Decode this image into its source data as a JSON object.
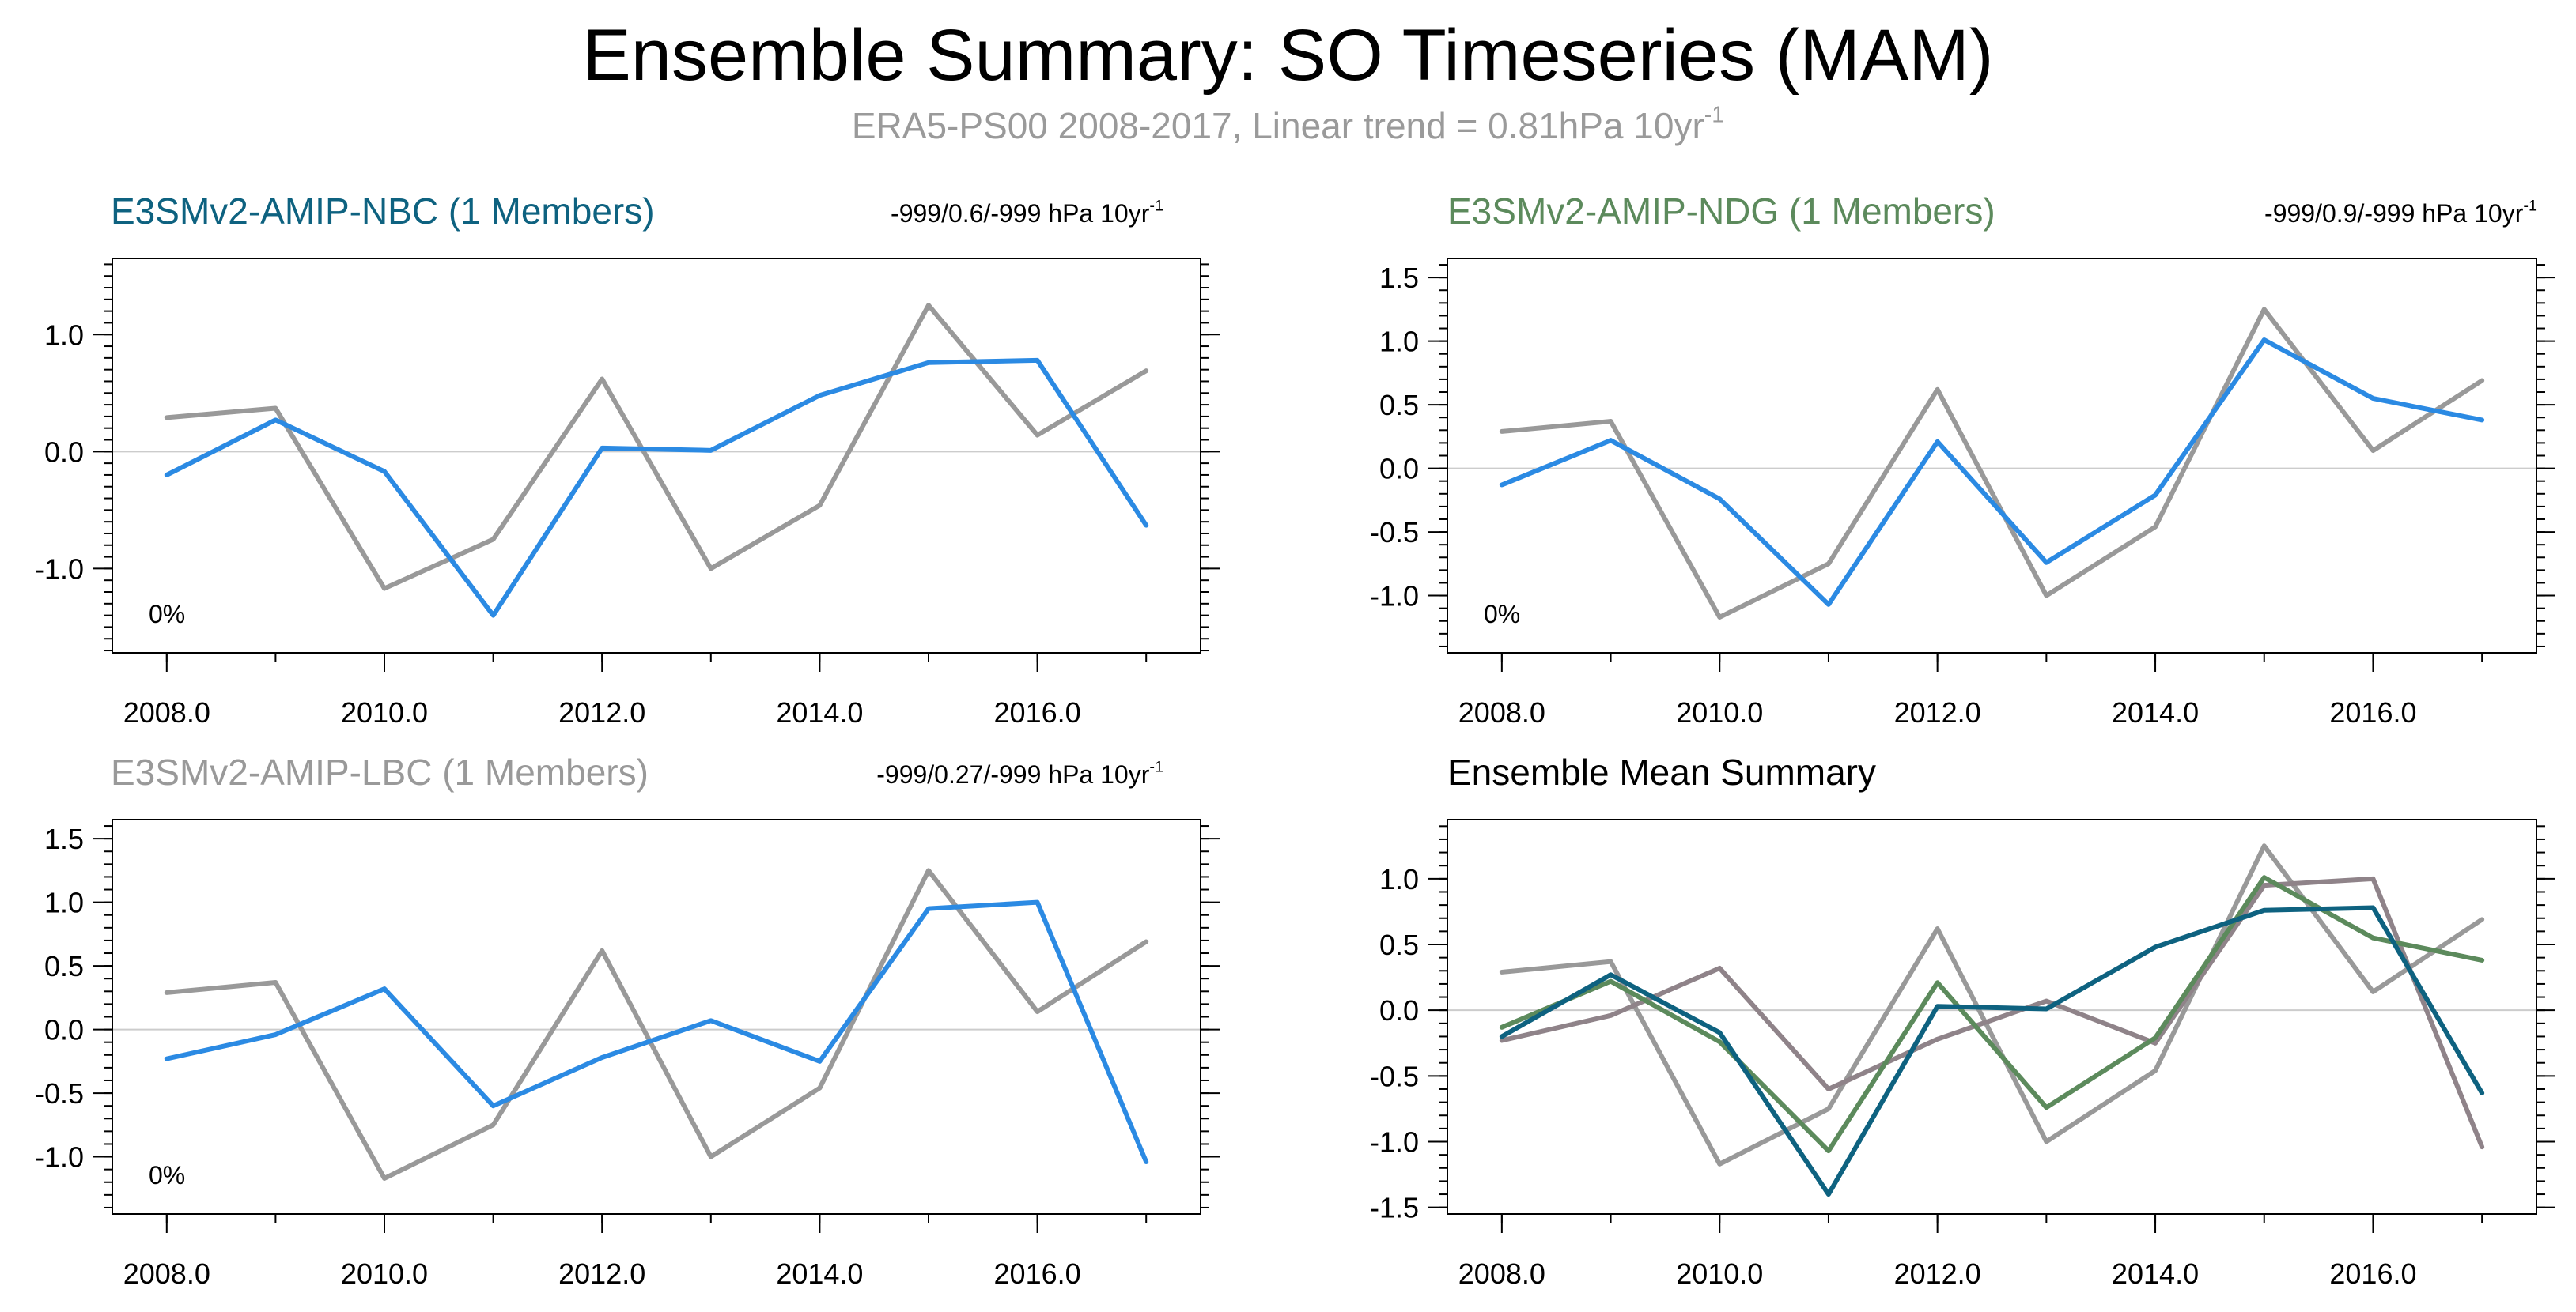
{
  "title": "Ensemble Summary: SO Timeseries (MAM)",
  "subtitle": {
    "text": "ERA5-PS00 2008-2017, Linear trend = 0.81hPa 10yr",
    "superscript": "-1"
  },
  "colors": {
    "observation": "#999999",
    "nbc": "#0e6280",
    "ndg": "#5c8a5c",
    "lbc": "#999999",
    "model_line": "#2b8ae3",
    "lbc_mean": "#8f8389",
    "zero_line": "#cccccc",
    "axis": "#000000"
  },
  "panels": [
    {
      "title": "E3SMv2-AMIP-NBC (1 Members)",
      "title_color": "#0e6280",
      "trend_text": "-999/0.6/-999 hPa 10yr",
      "trend_superscript": "-1",
      "percent_label": "0%"
    },
    {
      "title": "E3SMv2-AMIP-NDG (1 Members)",
      "title_color": "#5c8a5c",
      "trend_text": "-999/0.9/-999 hPa 10yr",
      "trend_superscript": "-1",
      "percent_label": "0%"
    },
    {
      "title": "E3SMv2-AMIP-LBC (1 Members)",
      "title_color": "#999999",
      "trend_text": "-999/0.27/-999 hPa 10yr",
      "trend_superscript": "-1",
      "percent_label": "0%"
    },
    {
      "title": "Ensemble Mean Summary",
      "title_color": "#000000"
    }
  ],
  "chart_data": [
    {
      "type": "line",
      "title": "E3SMv2-AMIP-NBC (1 Members)",
      "x": [
        2008,
        2009,
        2010,
        2011,
        2012,
        2013,
        2014,
        2015,
        2016,
        2017
      ],
      "xlim": [
        2007.5,
        2017.5
      ],
      "ylim": [
        -1.72,
        1.65
      ],
      "xticks": [
        2008,
        2010,
        2012,
        2014,
        2016
      ],
      "xtick_labels": [
        "2008.0",
        "2010.0",
        "2012.0",
        "2014.0",
        "2016.0"
      ],
      "yticks": [
        -1.0,
        0.0,
        1.0
      ],
      "ytick_labels": [
        "-1.0",
        "0.0",
        "1.0"
      ],
      "series": [
        {
          "name": "ERA5-PS00",
          "color": "#999999",
          "values": [
            0.29,
            0.37,
            -1.17,
            -0.75,
            0.62,
            -1.0,
            -0.46,
            1.25,
            0.14,
            0.69
          ]
        },
        {
          "name": "E3SMv2-AMIP-NBC",
          "color": "#2b8ae3",
          "values": [
            -0.2,
            0.27,
            -0.17,
            -1.4,
            0.03,
            0.01,
            0.48,
            0.76,
            0.78,
            -0.63
          ]
        }
      ]
    },
    {
      "type": "line",
      "title": "E3SMv2-AMIP-NDG (1 Members)",
      "x": [
        2008,
        2009,
        2010,
        2011,
        2012,
        2013,
        2014,
        2015,
        2016,
        2017
      ],
      "xlim": [
        2007.5,
        2017.5
      ],
      "ylim": [
        -1.45,
        1.65
      ],
      "xticks": [
        2008,
        2010,
        2012,
        2014,
        2016
      ],
      "xtick_labels": [
        "2008.0",
        "2010.0",
        "2012.0",
        "2014.0",
        "2016.0"
      ],
      "yticks": [
        -1.0,
        -0.5,
        0.0,
        0.5,
        1.0,
        1.5
      ],
      "ytick_labels": [
        "-1.0",
        "-0.5",
        "0.0",
        "0.5",
        "1.0",
        "1.5"
      ],
      "series": [
        {
          "name": "ERA5-PS00",
          "color": "#999999",
          "values": [
            0.29,
            0.37,
            -1.17,
            -0.75,
            0.62,
            -1.0,
            -0.46,
            1.25,
            0.14,
            0.69
          ]
        },
        {
          "name": "E3SMv2-AMIP-NDG",
          "color": "#2b8ae3",
          "values": [
            -0.13,
            0.22,
            -0.24,
            -1.07,
            0.21,
            -0.74,
            -0.21,
            1.01,
            0.55,
            0.38
          ]
        }
      ]
    },
    {
      "type": "line",
      "title": "E3SMv2-AMIP-LBC (1 Members)",
      "x": [
        2008,
        2009,
        2010,
        2011,
        2012,
        2013,
        2014,
        2015,
        2016,
        2017
      ],
      "xlim": [
        2007.5,
        2017.5
      ],
      "ylim": [
        -1.45,
        1.65
      ],
      "xticks": [
        2008,
        2010,
        2012,
        2014,
        2016
      ],
      "xtick_labels": [
        "2008.0",
        "2010.0",
        "2012.0",
        "2014.0",
        "2016.0"
      ],
      "yticks": [
        -1.0,
        -0.5,
        0.0,
        0.5,
        1.0,
        1.5
      ],
      "ytick_labels": [
        "-1.0",
        "-0.5",
        "0.0",
        "0.5",
        "1.0",
        "1.5"
      ],
      "series": [
        {
          "name": "ERA5-PS00",
          "color": "#999999",
          "values": [
            0.29,
            0.37,
            -1.17,
            -0.75,
            0.62,
            -1.0,
            -0.46,
            1.25,
            0.14,
            0.69
          ]
        },
        {
          "name": "E3SMv2-AMIP-LBC",
          "color": "#2b8ae3",
          "values": [
            -0.23,
            -0.04,
            0.32,
            -0.6,
            -0.22,
            0.07,
            -0.25,
            0.95,
            1.0,
            -1.04
          ]
        }
      ]
    },
    {
      "type": "line",
      "title": "Ensemble Mean Summary",
      "x": [
        2008,
        2009,
        2010,
        2011,
        2012,
        2013,
        2014,
        2015,
        2016,
        2017
      ],
      "xlim": [
        2007.5,
        2017.5
      ],
      "ylim": [
        -1.55,
        1.45
      ],
      "xticks": [
        2008,
        2010,
        2012,
        2014,
        2016
      ],
      "xtick_labels": [
        "2008.0",
        "2010.0",
        "2012.0",
        "2014.0",
        "2016.0"
      ],
      "yticks": [
        -1.5,
        -1.0,
        -0.5,
        0.0,
        0.5,
        1.0
      ],
      "ytick_labels": [
        "-1.5",
        "-1.0",
        "-0.5",
        "0.0",
        "0.5",
        "1.0"
      ],
      "series": [
        {
          "name": "ERA5-PS00",
          "color": "#999999",
          "values": [
            0.29,
            0.37,
            -1.17,
            -0.75,
            0.62,
            -1.0,
            -0.46,
            1.25,
            0.14,
            0.69
          ]
        },
        {
          "name": "E3SMv2-AMIP-LBC",
          "color": "#8f8389",
          "values": [
            -0.23,
            -0.04,
            0.32,
            -0.6,
            -0.22,
            0.07,
            -0.25,
            0.95,
            1.0,
            -1.04
          ]
        },
        {
          "name": "E3SMv2-AMIP-NDG",
          "color": "#5c8a5c",
          "values": [
            -0.13,
            0.22,
            -0.24,
            -1.07,
            0.21,
            -0.74,
            -0.21,
            1.01,
            0.55,
            0.38
          ]
        },
        {
          "name": "E3SMv2-AMIP-NBC",
          "color": "#0e6280",
          "values": [
            -0.2,
            0.27,
            -0.17,
            -1.4,
            0.03,
            0.01,
            0.48,
            0.76,
            0.78,
            -0.63
          ]
        }
      ]
    }
  ]
}
